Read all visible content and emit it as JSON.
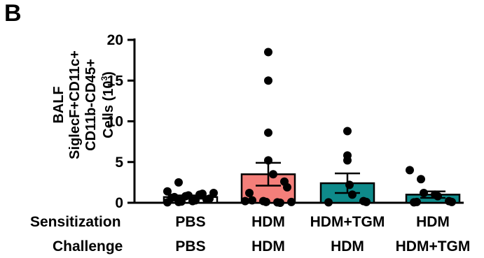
{
  "panel_label": "B",
  "chart_data": {
    "type": "bar",
    "ylabel_lines": [
      "BALF",
      "SiglecF+CD11c+",
      "CD11b-CD45+",
      "Cells (10",
      "3",
      ")"
    ],
    "ylim": [
      0,
      20
    ],
    "yticks": [
      0,
      5,
      10,
      15,
      20
    ],
    "row_labels": [
      "Sensitization",
      "Challenge"
    ],
    "categories": [
      {
        "sensitization": "PBS",
        "challenge": "PBS",
        "color": "#ffffff",
        "mean": 0.7,
        "sem": 0.2,
        "points": [
          0.05,
          0.1,
          0.15,
          0.2,
          0.3,
          0.4,
          0.5,
          0.6,
          0.7,
          0.8,
          0.9,
          1.0,
          1.1,
          1.2,
          1.4,
          2.5
        ]
      },
      {
        "sensitization": "HDM",
        "challenge": "HDM",
        "color": "#f47f7a",
        "mean": 3.5,
        "sem": 1.4,
        "points": [
          18.5,
          15.0,
          8.6,
          5.2,
          3.5,
          2.6,
          1.9,
          1.2,
          0.3,
          0.2,
          0.1,
          0.05,
          0.0,
          0.1,
          0.2
        ]
      },
      {
        "sensitization": "HDM+TGM",
        "challenge": "HDM",
        "color": "#0e8a8a",
        "mean": 2.4,
        "sem": 1.2,
        "points": [
          8.8,
          5.8,
          5.2,
          2.2,
          1.0,
          0.2,
          0.1,
          0.05
        ]
      },
      {
        "sensitization": "HDM",
        "challenge": "HDM+TGM",
        "color": "#0e8a8a",
        "mean": 1.0,
        "sem": 0.4,
        "points": [
          4.0,
          2.9,
          1.2,
          1.0,
          0.8,
          0.2,
          0.1,
          0.05,
          0.1
        ]
      }
    ]
  }
}
